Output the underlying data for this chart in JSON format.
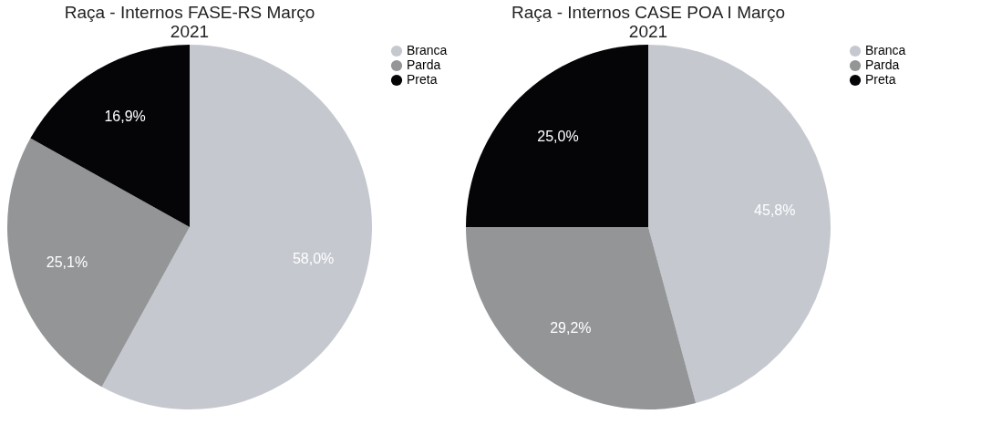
{
  "chart_data": [
    {
      "type": "pie",
      "title": "Raça - Internos FASE-RS Março\n2021",
      "categories": [
        "Branca",
        "Parda",
        "Preta"
      ],
      "values": [
        58.0,
        25.1,
        16.9
      ],
      "colors": [
        "#c5c8cf",
        "#939597",
        "#050508"
      ],
      "value_labels": [
        "58,0%",
        "25,1%",
        "16,9%"
      ],
      "legend": "top right"
    },
    {
      "type": "pie",
      "title": "Raça - Internos CASE POA I Março\n2021",
      "categories": [
        "Branca",
        "Parda",
        "Preta"
      ],
      "values": [
        45.8,
        29.2,
        25.0
      ],
      "colors": [
        "#c5c8cf",
        "#939597",
        "#050508"
      ],
      "value_labels": [
        "45,8%",
        "29,2%",
        "25,0%"
      ],
      "legend": "top right"
    }
  ]
}
